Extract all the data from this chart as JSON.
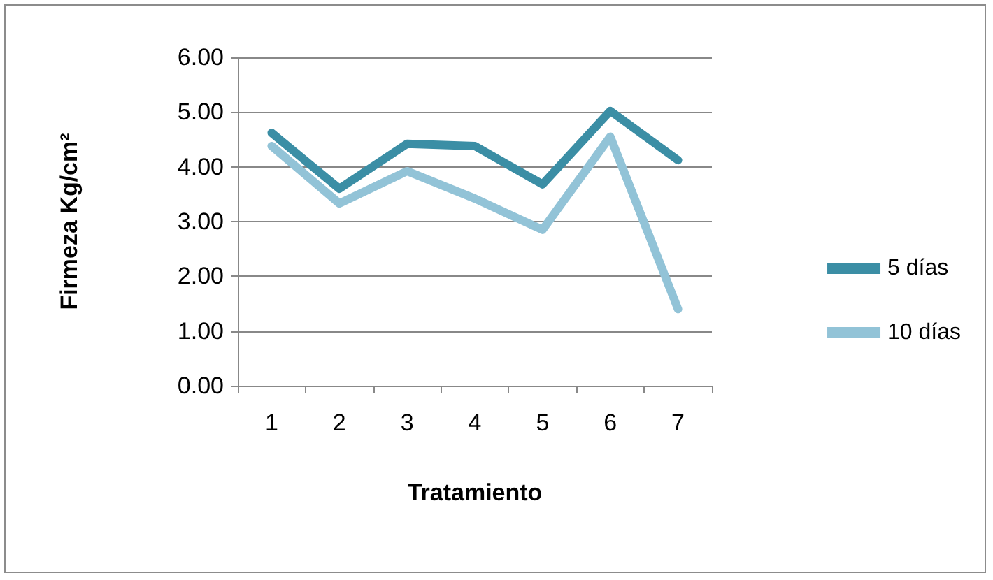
{
  "chart_data": {
    "type": "line",
    "xlabel": "Tratamiento",
    "ylabel": "Firmeza Kg/cm²",
    "categories": [
      "1",
      "2",
      "3",
      "4",
      "5",
      "6",
      "7"
    ],
    "series": [
      {
        "name": "5 días",
        "color": "#3b8ea5",
        "values": [
          4.62,
          3.6,
          4.42,
          4.38,
          3.68,
          5.02,
          4.12
        ]
      },
      {
        "name": "10 días",
        "color": "#92c3d7",
        "values": [
          4.38,
          3.33,
          3.92,
          3.42,
          2.85,
          4.55,
          1.4
        ]
      }
    ],
    "ylim": [
      0,
      6
    ],
    "yticks": [
      {
        "value": 0,
        "label": "0.00"
      },
      {
        "value": 1,
        "label": "1.00"
      },
      {
        "value": 2,
        "label": "2.00"
      },
      {
        "value": 3,
        "label": "3.00"
      },
      {
        "value": 4,
        "label": "4.00"
      },
      {
        "value": 5,
        "label": "5.00"
      },
      {
        "value": 6,
        "label": "6.00"
      }
    ],
    "grid": "y",
    "legend": "right",
    "marker": "none",
    "line_style": "solid"
  }
}
